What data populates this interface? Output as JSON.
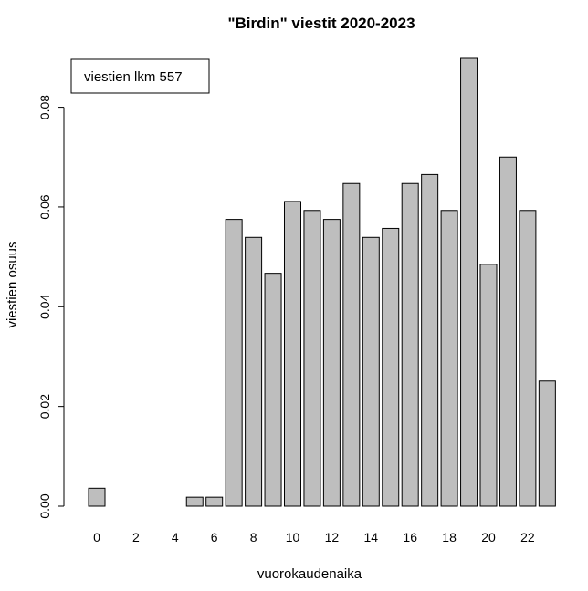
{
  "colors": {
    "bar_fill": "#bebebe",
    "bar_stroke": "#000000",
    "background": "#ffffff"
  },
  "chart_data": {
    "type": "bar",
    "title": "\"Birdin\" viestit 2020-2023",
    "xlabel": "vuorokaudenaika",
    "ylabel": "viestien osuus",
    "categories": [
      "0",
      "1",
      "2",
      "3",
      "4",
      "5",
      "6",
      "7",
      "8",
      "9",
      "10",
      "11",
      "12",
      "13",
      "14",
      "15",
      "16",
      "17",
      "18",
      "19",
      "20",
      "21",
      "22",
      "23"
    ],
    "x_tick_labels": [
      "0",
      "2",
      "4",
      "6",
      "8",
      "10",
      "12",
      "14",
      "16",
      "18",
      "20",
      "22"
    ],
    "values": [
      0.0036,
      0,
      0,
      0,
      0,
      0.0018,
      0.0018,
      0.0575,
      0.0539,
      0.0467,
      0.0611,
      0.0593,
      0.0575,
      0.0647,
      0.0539,
      0.0557,
      0.0647,
      0.0665,
      0.0593,
      0.0898,
      0.0485,
      0.07,
      0.0593,
      0.0251
    ],
    "y_ticks": [
      0.0,
      0.02,
      0.04,
      0.06,
      0.08
    ],
    "y_tick_labels": [
      "0.00",
      "0.02",
      "0.04",
      "0.06",
      "0.08"
    ],
    "ylim": [
      0,
      0.0898
    ],
    "grid": false,
    "legend": {
      "text": "viestien lkm 557",
      "placement": "top-left"
    }
  }
}
